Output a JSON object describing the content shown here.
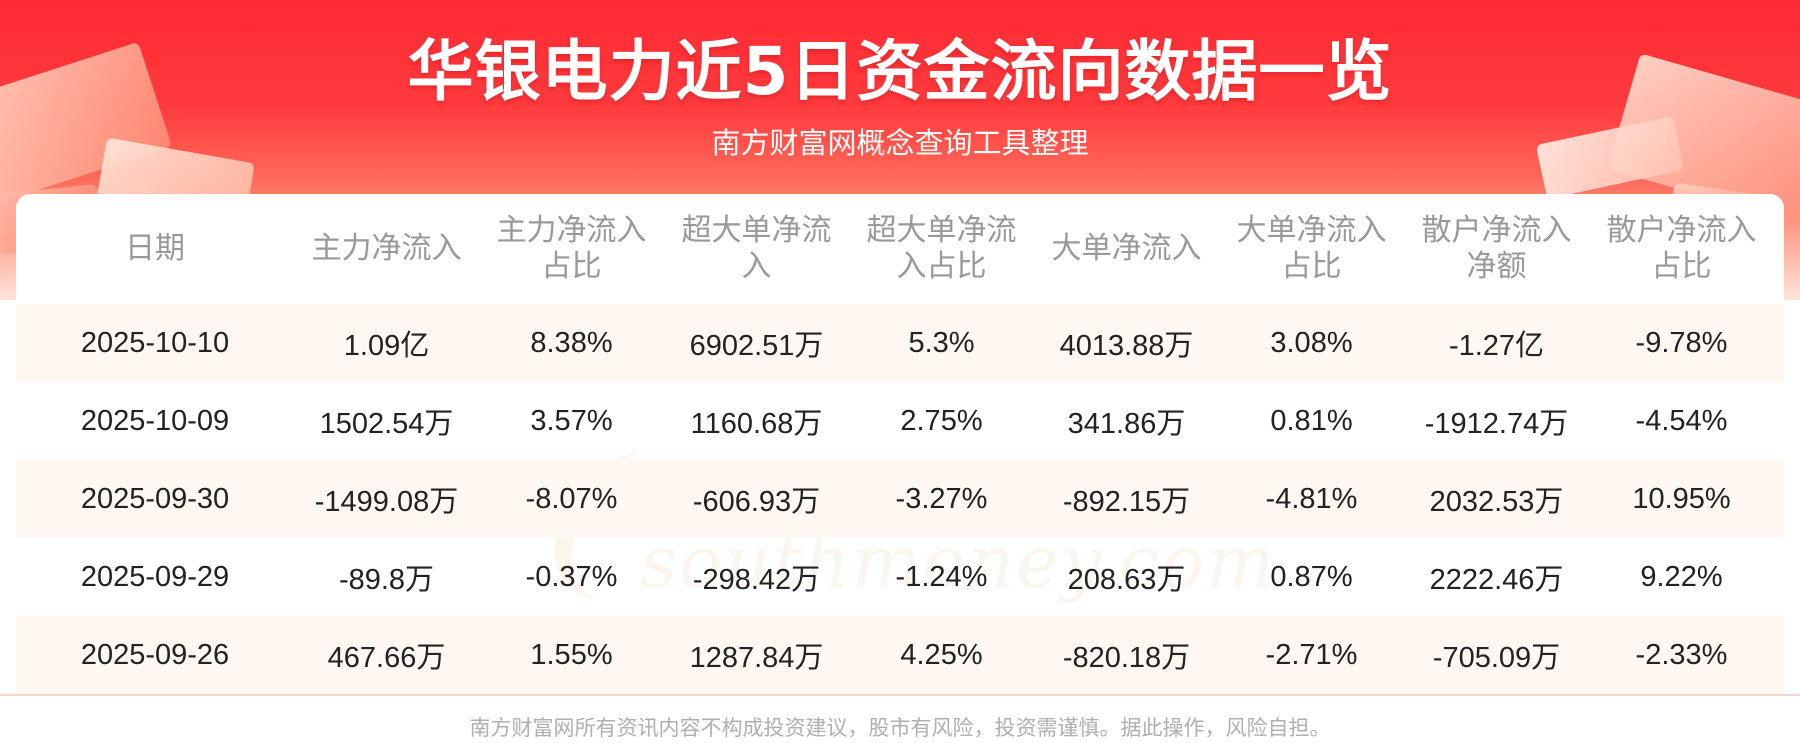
{
  "header": {
    "title": "华银电力近5日资金流向数据一览",
    "subtitle": "南方财富网概念查询工具整理"
  },
  "table": {
    "columns": [
      "日期",
      "主力净流入",
      "主力净流入\n占比",
      "超大单净流\n入",
      "超大单净流\n入占比",
      "大单净流入",
      "大单净流入\n占比",
      "散户净流入\n净额",
      "散户净流入\n占比"
    ],
    "rows": [
      [
        "2025-10-10",
        "1.09亿",
        "8.38%",
        "6902.51万",
        "5.3%",
        "4013.88万",
        "3.08%",
        "-1.27亿",
        "-9.78%"
      ],
      [
        "2025-10-09",
        "1502.54万",
        "3.57%",
        "1160.68万",
        "2.75%",
        "341.86万",
        "0.81%",
        "-1912.74万",
        "-4.54%"
      ],
      [
        "2025-09-30",
        "-1499.08万",
        "-8.07%",
        "-606.93万",
        "-3.27%",
        "-892.15万",
        "-4.81%",
        "2032.53万",
        "10.95%"
      ],
      [
        "2025-09-29",
        "-89.8万",
        "-0.37%",
        "-298.42万",
        "-1.24%",
        "208.63万",
        "0.87%",
        "2222.46万",
        "9.22%"
      ],
      [
        "2025-09-26",
        "467.66万",
        "1.55%",
        "1287.84万",
        "4.25%",
        "-820.18万",
        "-2.71%",
        "-705.09万",
        "-2.33%"
      ]
    ]
  },
  "watermark": {
    "cn": "南方财富网",
    "en": "southmoney.com"
  },
  "footer": {
    "disclaimer": "南方财富网所有资讯内容不构成投资建议，股市有风险，投资需谨慎。据此操作，风险自担。"
  },
  "colors": {
    "banner_red": "#ff2a34",
    "row_stripe": "#fff7f2",
    "header_text": "#999999",
    "cell_text": "#222222"
  }
}
